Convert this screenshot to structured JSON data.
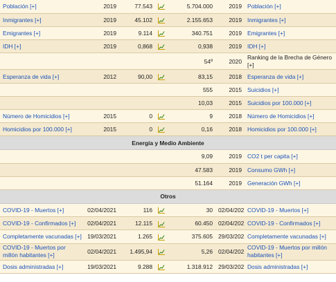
{
  "sections": [
    {
      "type": "rows",
      "start": 0,
      "rows": [
        {
          "left_label": "Población [+]",
          "left_year": "2019",
          "left_value": "77.543",
          "left_chart": true,
          "right_value": "5.704.000",
          "right_year": "2019",
          "right_label": "Población [+]"
        },
        {
          "left_label": "Inmigrantes [+]",
          "left_year": "2019",
          "left_value": "45.102",
          "left_chart": true,
          "right_value": "2.155.653",
          "right_year": "2019",
          "right_label": "Inmigrantes [+]"
        },
        {
          "left_label": "Emigrantes [+]",
          "left_year": "2019",
          "left_value": "9.114",
          "left_chart": true,
          "right_value": "340.751",
          "right_year": "2019",
          "right_label": "Emigrantes [+]"
        },
        {
          "left_label": "IDH [+]",
          "left_year": "2019",
          "left_value": "0,868",
          "left_chart": true,
          "right_value": "0,938",
          "right_year": "2019",
          "right_label": "IDH [+]"
        },
        {
          "left_label": "",
          "left_year": "",
          "left_value": "",
          "left_chart": false,
          "right_value": "54º",
          "right_year": "2020",
          "right_label": "Ranking de la Brecha de Género [+]",
          "right_link": false,
          "tall": true
        },
        {
          "left_label": "Esperanza de vida [+]",
          "left_year": "2012",
          "left_value": "90,00",
          "left_chart": true,
          "right_value": "83,15",
          "right_year": "2018",
          "right_label": "Esperanza de vida [+]"
        },
        {
          "left_label": "",
          "left_year": "",
          "left_value": "",
          "left_chart": false,
          "right_value": "555",
          "right_year": "2015",
          "right_label": "Suicidios [+]"
        },
        {
          "left_label": "",
          "left_year": "",
          "left_value": "",
          "left_chart": false,
          "right_value": "10,03",
          "right_year": "2015",
          "right_label": "Suicidios por 100.000 [+]"
        },
        {
          "left_label": "Número de Homicidios [+]",
          "left_year": "2015",
          "left_value": "0",
          "left_chart": true,
          "right_value": "9",
          "right_year": "2018",
          "right_label": "Número de Homicidios [+]"
        },
        {
          "left_label": "Homicidios por 100.000 [+]",
          "left_year": "2015",
          "left_value": "0",
          "left_chart": true,
          "right_value": "0,16",
          "right_year": "2018",
          "right_label": "Homicidios por 100.000 [+]"
        }
      ]
    },
    {
      "type": "header",
      "title": "Energía y Medio Ambiente"
    },
    {
      "type": "rows",
      "start": 0,
      "rows": [
        {
          "left_label": "",
          "left_year": "",
          "left_value": "",
          "left_chart": false,
          "right_value": "9,09",
          "right_year": "2019",
          "right_label": "CO2 t per capita [+]"
        },
        {
          "left_label": "",
          "left_year": "",
          "left_value": "",
          "left_chart": false,
          "right_value": "47.583",
          "right_year": "2019",
          "right_label": "Consumo GWh [+]"
        },
        {
          "left_label": "",
          "left_year": "",
          "left_value": "",
          "left_chart": false,
          "right_value": "51.164",
          "right_year": "2019",
          "right_label": "Generación GWh [+]"
        }
      ]
    },
    {
      "type": "header",
      "title": "Otros"
    },
    {
      "type": "rows",
      "start": 0,
      "rows": [
        {
          "left_label": "COVID-19 - Muertos [+]",
          "left_year": "02/04/2021",
          "left_value": "116",
          "left_chart": true,
          "right_value": "30",
          "right_year": "02/04/2021",
          "right_label": "COVID-19 - Muertos [+]"
        },
        {
          "left_label": "COVID-19 - Confirmados [+]",
          "left_year": "02/04/2021",
          "left_value": "12.115",
          "left_chart": true,
          "right_value": "60.450",
          "right_year": "02/04/2021",
          "right_label": "COVID-19 - Confirmados [+]"
        },
        {
          "left_label": "Completamente vacunadas [+]",
          "left_year": "19/03/2021",
          "left_value": "1.265",
          "left_chart": true,
          "right_value": "375.605",
          "right_year": "29/03/2021",
          "right_label": "Completamente vacunadas [+]"
        },
        {
          "left_label": "COVID-19 - Muertos por millón habitantes [+]",
          "left_year": "02/04/2021",
          "left_value": "1.495,94",
          "left_chart": true,
          "right_value": "5,26",
          "right_year": "02/04/2021",
          "right_label": "COVID-19 - Muertos por millón habitantes [+]",
          "tall": true
        },
        {
          "left_label": "Dosis administradas [+]",
          "left_year": "19/03/2021",
          "left_value": "9.288",
          "left_chart": true,
          "right_value": "1.318.912",
          "right_year": "29/03/2021",
          "right_label": "Dosis administradas [+]"
        }
      ]
    }
  ],
  "colors": {
    "link": "#1a52b8",
    "row_bg": "#fdf6e3",
    "row_alt_bg": "#f5ead0",
    "section_bg": "#dcdcdc",
    "chart_bar": "#c8a000",
    "chart_line": "#3a8a1a"
  },
  "icons": {
    "chart": "mini-chart-icon"
  }
}
